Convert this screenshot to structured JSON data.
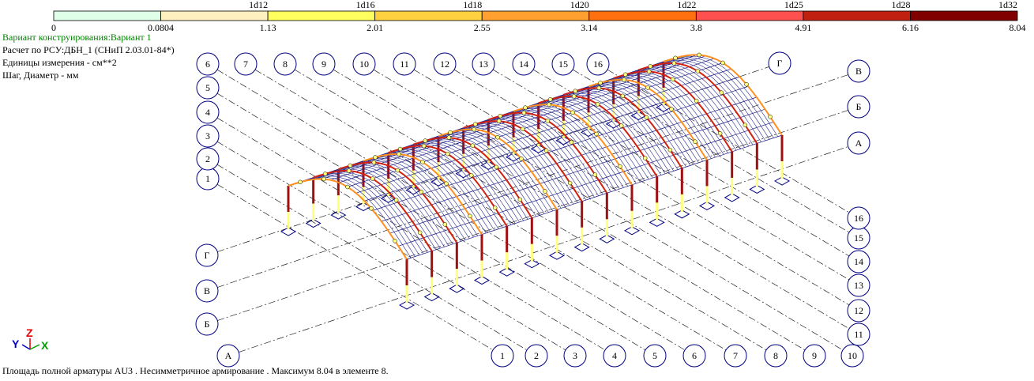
{
  "legend": {
    "diameters": [
      "1d12",
      "1d16",
      "1d18",
      "1d20",
      "1d22",
      "1d25",
      "1d28",
      "1d32"
    ],
    "values": [
      "0",
      "0.0804",
      "1.13",
      "2.01",
      "2.55",
      "3.14",
      "3.8",
      "4.91",
      "6.16",
      "8.04"
    ]
  },
  "info": {
    "variant": "Вариант конструирования:Вариант 1",
    "calculation": "Расчет по РСУ:ДБН_1 (СНиП 2.03.01-84*)",
    "units": "Единицы измерения - см**2",
    "step": "Шаг, Диаметр - мм"
  },
  "grid_axes": {
    "numbers": [
      "1",
      "2",
      "3",
      "4",
      "5",
      "6",
      "7",
      "8",
      "9",
      "10",
      "11",
      "12",
      "13",
      "14",
      "15",
      "16"
    ],
    "letters": [
      "А",
      "Б",
      "В",
      "Г"
    ]
  },
  "triad": {
    "x": "X",
    "y": "Y",
    "z": "Z"
  },
  "status": "Площадь полной арматуры AU3 . Несимметричное армирование . Максимум 8.04 в элементе 8."
}
